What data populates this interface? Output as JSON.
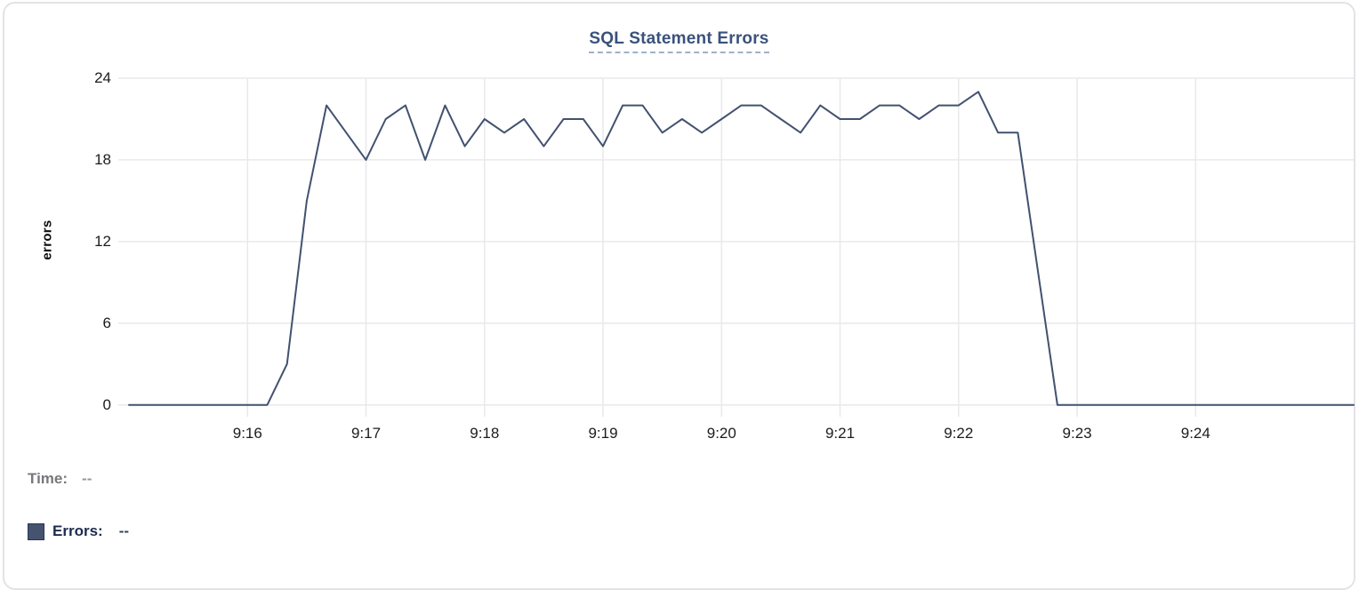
{
  "chart": {
    "title": "SQL Statement Errors",
    "ylabel": "errors"
  },
  "legend": {
    "time_label": "Time:",
    "time_value": "--",
    "errors_label": "Errors:",
    "errors_value": "--"
  },
  "colors": {
    "line": "#42516f",
    "title": "#3a527c",
    "title_underline": "#a0b0c8",
    "grid": "#e9e9ec",
    "axis_text": "#1c1c1e",
    "time_text": "#77787b",
    "errors_text": "#1e2b4f",
    "swatch_fill": "#46536f",
    "swatch_border": "#26355a",
    "card_border": "#e3e3e7"
  },
  "chart_data": {
    "type": "line",
    "title": "SQL Statement Errors",
    "xlabel": "",
    "ylabel": "errors",
    "ylim": [
      0,
      24
    ],
    "y_ticks": [
      0,
      6,
      12,
      18,
      24
    ],
    "x_tick_labels": [
      "9:16",
      "9:17",
      "9:18",
      "9:19",
      "9:20",
      "9:21",
      "9:22",
      "9:23",
      "9:24"
    ],
    "start_time": "9:15:00",
    "end_time": "9:25:20",
    "sample_interval_seconds": 10,
    "grid": true,
    "legend_position": "bottom-left",
    "series": [
      {
        "name": "Errors",
        "color": "#42516f",
        "values": [
          0,
          0,
          0,
          0,
          0,
          0,
          0,
          0,
          3,
          15,
          22,
          20,
          18,
          21,
          22,
          18,
          22,
          19,
          21,
          20,
          21,
          19,
          21,
          21,
          19,
          22,
          22,
          20,
          21,
          20,
          21,
          22,
          22,
          21,
          20,
          22,
          21,
          21,
          22,
          22,
          21,
          22,
          22,
          23,
          20,
          20,
          10,
          0,
          0,
          0,
          0,
          0,
          0,
          0,
          0,
          0,
          0,
          0,
          0,
          0,
          0,
          0,
          0
        ]
      }
    ]
  }
}
